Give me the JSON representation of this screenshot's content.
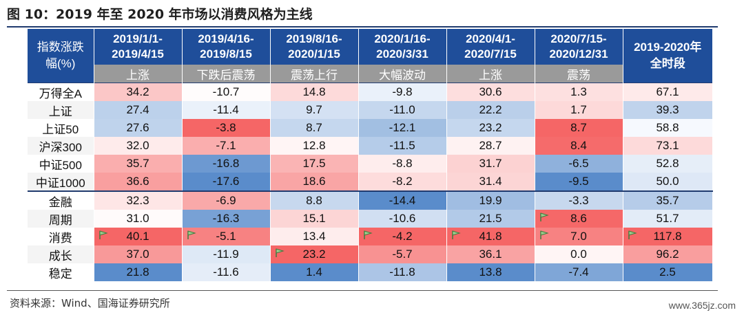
{
  "title": "图 10：2019 年至 2020 年市场以消费风格为主线",
  "corner_label_line1": "指数涨跌",
  "corner_label_line2": "幅(%)",
  "periods": [
    {
      "range_line1": "2019/1/1-",
      "range_line2": "2019/4/15",
      "phase": "上涨"
    },
    {
      "range_line1": "2019/4/16-",
      "range_line2": "2019/8/15",
      "phase": "下跌后震荡"
    },
    {
      "range_line1": "2019/8/16-",
      "range_line2": "2020/1/15",
      "phase": "震荡上行"
    },
    {
      "range_line1": "2020/1/16-",
      "range_line2": "2020/3/31",
      "phase": "大幅波动"
    },
    {
      "range_line1": "2020/4/1-",
      "range_line2": "2020/7/15",
      "phase": "上涨"
    },
    {
      "range_line1": "2020/7/15-",
      "range_line2": "2020/12/31",
      "phase": "震荡"
    }
  ],
  "full_period_line1": "2019-2020年",
  "full_period_line2": "全时段",
  "rows": [
    {
      "label": "万得全A",
      "values": [
        "34.2",
        "-10.7",
        "14.8",
        "-9.8",
        "30.6",
        "1.3",
        "67.1"
      ]
    },
    {
      "label": "上证",
      "values": [
        "27.4",
        "-11.4",
        "9.7",
        "-11.0",
        "22.2",
        "1.7",
        "39.3"
      ]
    },
    {
      "label": "上证50",
      "values": [
        "27.6",
        "-3.8",
        "8.7",
        "-12.1",
        "23.2",
        "8.7",
        "58.8"
      ]
    },
    {
      "label": "沪深300",
      "values": [
        "32.0",
        "-7.1",
        "12.8",
        "-11.5",
        "28.7",
        "8.4",
        "73.1"
      ]
    },
    {
      "label": "中证500",
      "values": [
        "35.7",
        "-16.8",
        "17.5",
        "-8.8",
        "31.7",
        "-6.5",
        "52.8"
      ]
    },
    {
      "label": "中证1000",
      "values": [
        "36.6",
        "-17.6",
        "18.6",
        "-8.2",
        "31.4",
        "-9.5",
        "50.0"
      ]
    },
    {
      "label": "金融",
      "values": [
        "32.3",
        "-6.9",
        "8.8",
        "-14.4",
        "19.9",
        "-3.3",
        "35.7"
      ]
    },
    {
      "label": "周期",
      "values": [
        "31.0",
        "-16.3",
        "15.1",
        "-10.6",
        "21.5",
        "8.6",
        "51.7"
      ]
    },
    {
      "label": "消费",
      "values": [
        "40.1",
        "-5.1",
        "13.4",
        "-4.2",
        "41.8",
        "7.0",
        "117.8"
      ]
    },
    {
      "label": "成长",
      "values": [
        "37.0",
        "-11.9",
        "23.2",
        "-5.7",
        "36.1",
        "0.0",
        "96.2"
      ]
    },
    {
      "label": "稳定",
      "values": [
        "21.8",
        "-11.6",
        "1.4",
        "-11.8",
        "13.8",
        "-7.4",
        "2.5"
      ]
    }
  ],
  "flags": [
    {
      "row": 7,
      "col": 5
    },
    {
      "row": 8,
      "col": 0
    },
    {
      "row": 8,
      "col": 1
    },
    {
      "row": 8,
      "col": 3
    },
    {
      "row": 8,
      "col": 4
    },
    {
      "row": 8,
      "col": 5
    },
    {
      "row": 8,
      "col": 6
    },
    {
      "row": 9,
      "col": 2
    }
  ],
  "source": "资料来源：Wind、国海证券研究所",
  "watermark": "www.365jz.com"
}
